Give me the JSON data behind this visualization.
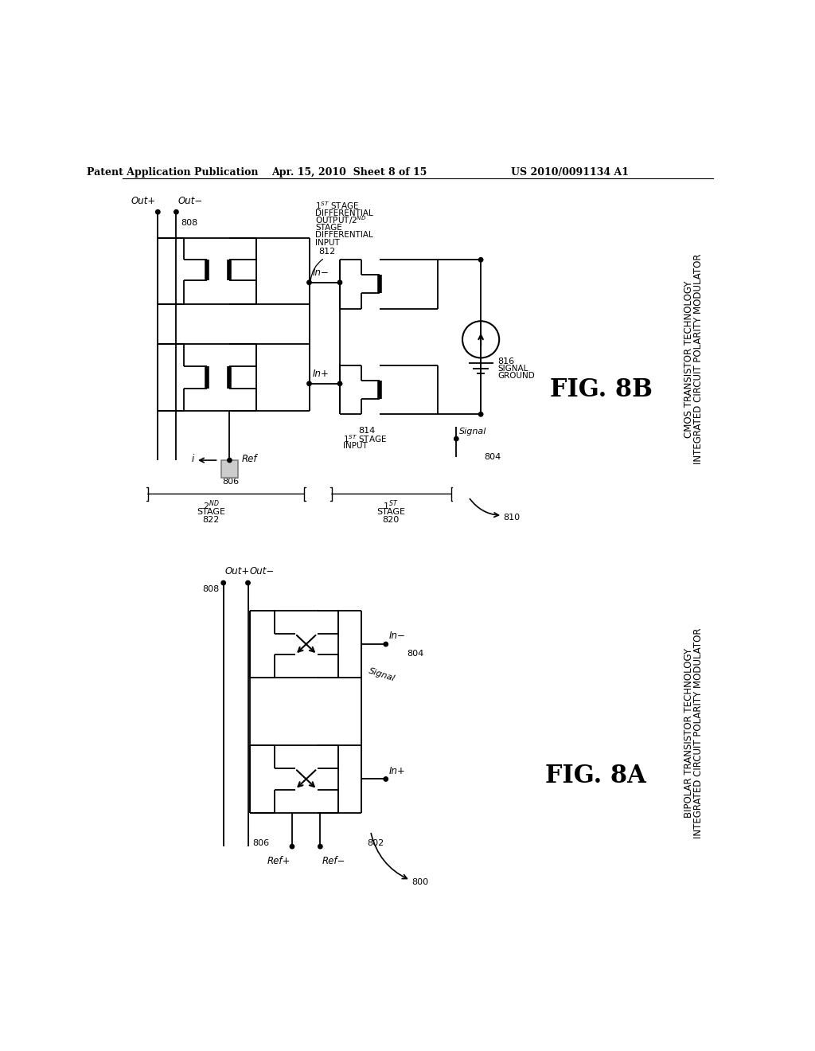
{
  "title_left": "Patent Application Publication",
  "title_mid": "Apr. 15, 2010  Sheet 8 of 15",
  "title_right": "US 2010/0091134 A1",
  "bg_color": "#ffffff",
  "fig_label_8B": "FIG. 8B",
  "fig_label_8A": "FIG. 8A",
  "label_8B_title1": "CMOS TRANSISTOR TECHNOLOGY",
  "label_8B_title2": "INTEGRATED CIRCUIT POLARITY MODULATOR",
  "label_8A_title1": "BIPOLAR TRANSISTOR TECHNOLOGY",
  "label_8A_title2": "INTEGRATED CIRCUIT POLARITY MODULATOR"
}
